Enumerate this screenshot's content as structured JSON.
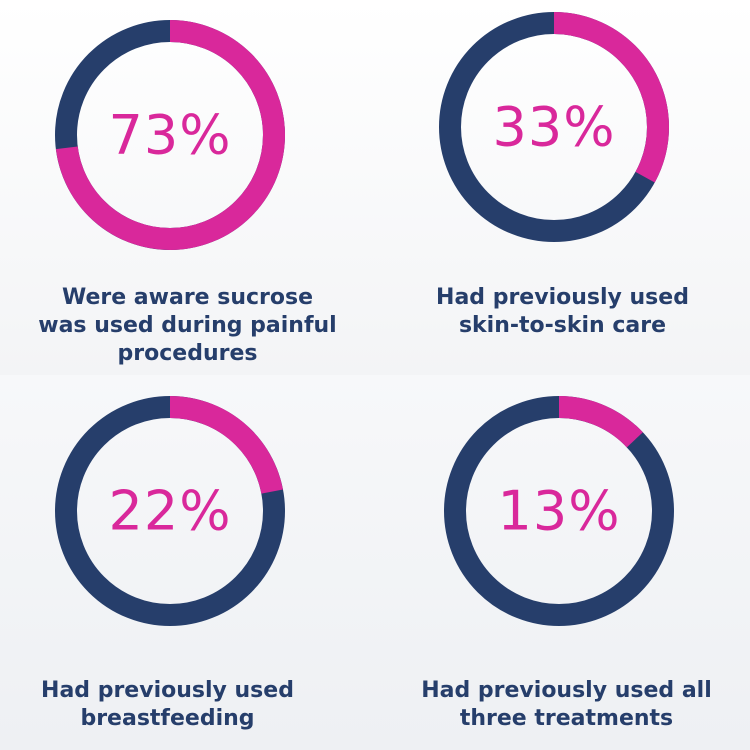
{
  "colors": {
    "highlight": "#d9289b",
    "track": "#263e6b",
    "text": "#263e6b"
  },
  "chart_data": {
    "type": "donut",
    "items": [
      {
        "label_text": "73%",
        "value": 73,
        "caption": [
          "Were aware sucrose",
          "was used during painful",
          "procedures"
        ]
      },
      {
        "label_text": "33%",
        "value": 33,
        "caption": [
          "Had previously used",
          "skin-to-skin care"
        ]
      },
      {
        "label_text": "22%",
        "value": 22,
        "caption": [
          "Had previously used",
          "breastfeeding"
        ]
      },
      {
        "label_text": "13%",
        "value": 13,
        "caption": [
          "Had previously used all",
          "three treatments"
        ]
      }
    ]
  }
}
